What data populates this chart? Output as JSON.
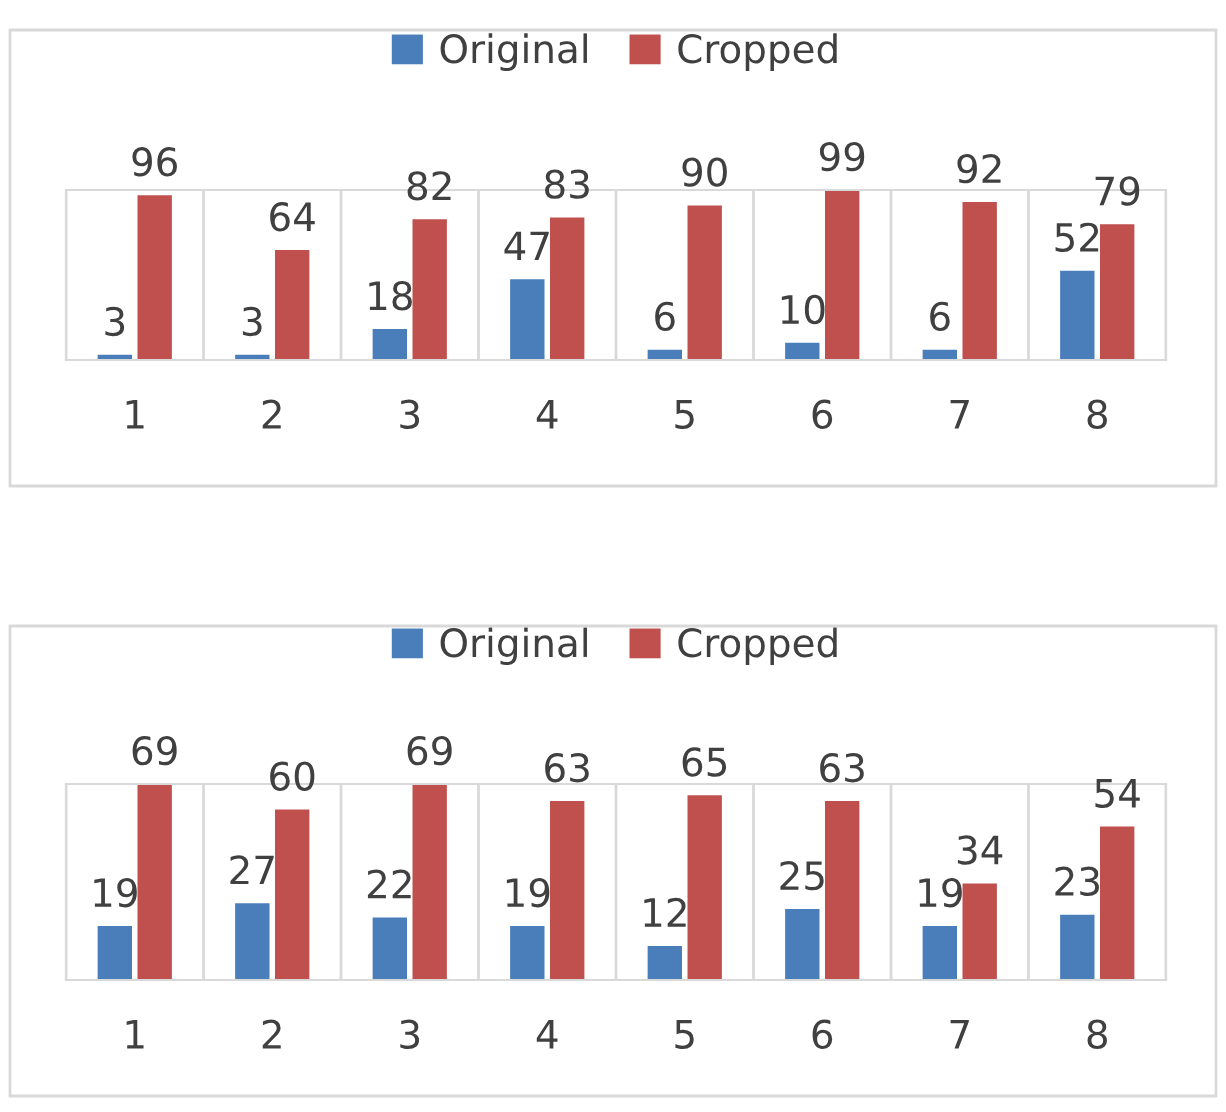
{
  "chart_data": [
    {
      "type": "bar",
      "categories": [
        "1",
        "2",
        "3",
        "4",
        "5",
        "6",
        "7",
        "8"
      ],
      "series": [
        {
          "name": "Original",
          "color": "#4a7ebb",
          "values": [
            3,
            3,
            18,
            47,
            6,
            10,
            6,
            52
          ]
        },
        {
          "name": "Cropped",
          "color": "#c0504d",
          "values": [
            96,
            64,
            82,
            83,
            90,
            99,
            92,
            79
          ]
        }
      ],
      "data_labels": true,
      "grid": "x",
      "legend": "top"
    },
    {
      "type": "bar",
      "categories": [
        "1",
        "2",
        "3",
        "4",
        "5",
        "6",
        "7",
        "8"
      ],
      "series": [
        {
          "name": "Original",
          "color": "#4a7ebb",
          "values": [
            19,
            27,
            22,
            19,
            12,
            25,
            19,
            23
          ]
        },
        {
          "name": "Cropped",
          "color": "#c0504d",
          "values": [
            69,
            60,
            69,
            63,
            65,
            63,
            34,
            54
          ]
        }
      ],
      "data_labels": true,
      "grid": "x",
      "legend": "top"
    }
  ]
}
